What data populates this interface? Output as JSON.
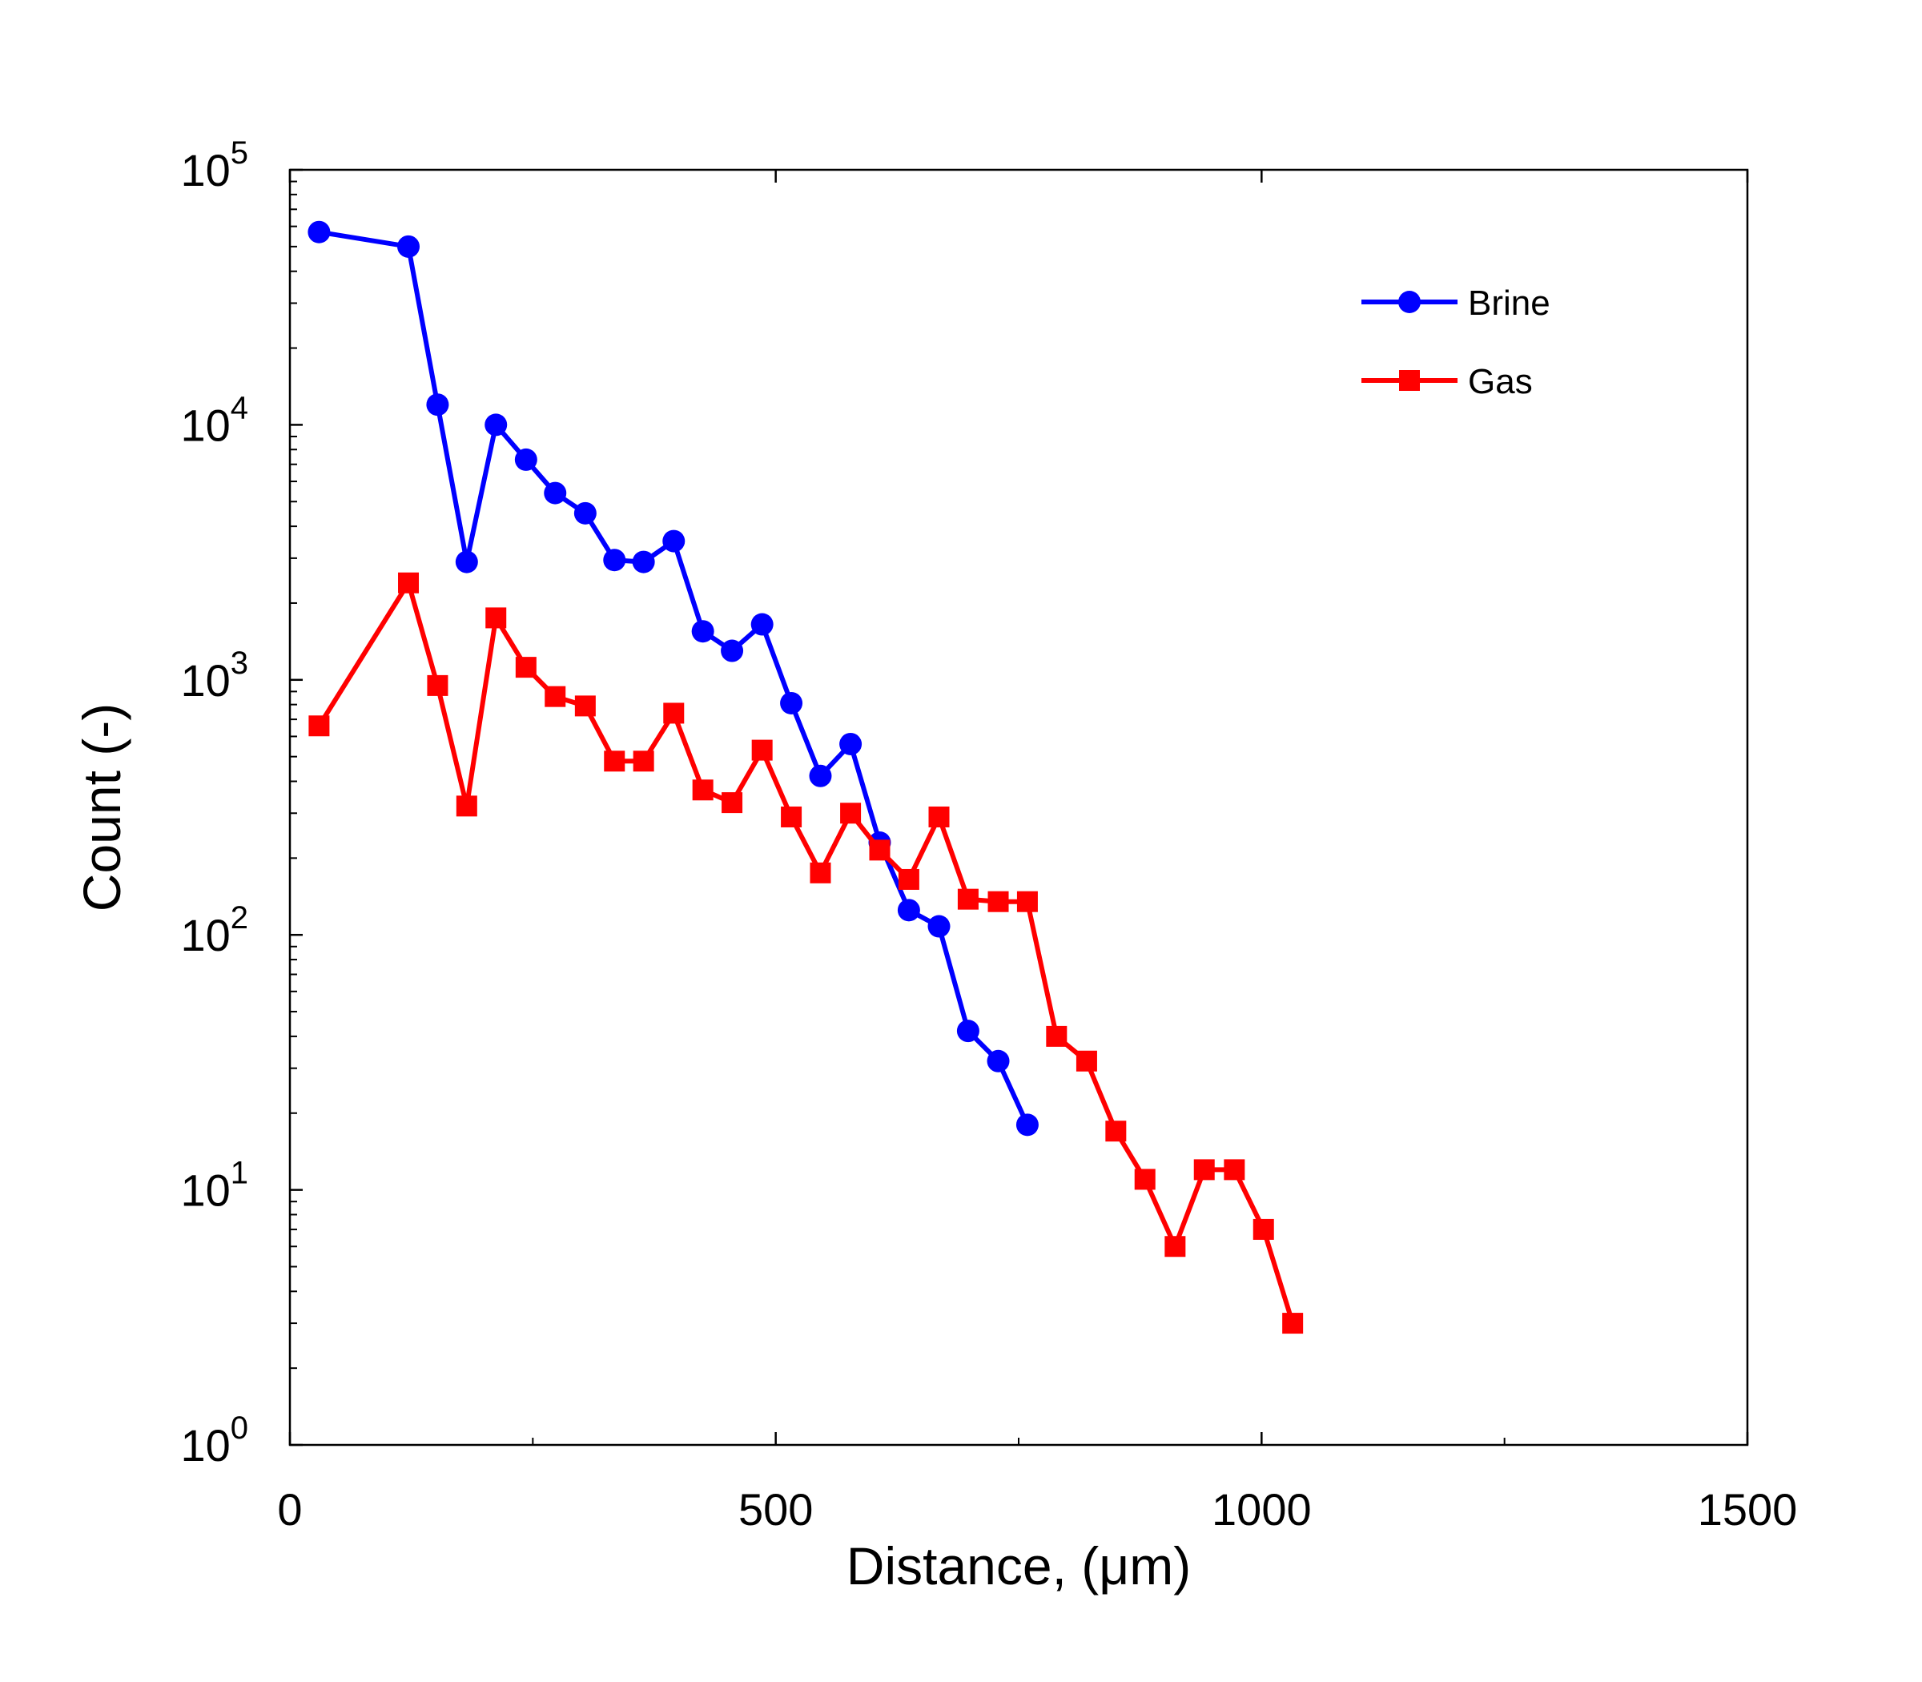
{
  "chart_data": {
    "type": "line",
    "title": "",
    "xlabel": "Distance, (μm)",
    "ylabel": "Count (-)",
    "xlim": [
      0,
      1500
    ],
    "ylim": [
      1,
      100000
    ],
    "yscale": "log",
    "grid": false,
    "legend_position": "top-right",
    "x_ticks": [
      "0",
      "500",
      "1000",
      "1500"
    ],
    "y_ticks": [
      {
        "base": "10",
        "exp": "0"
      },
      {
        "base": "10",
        "exp": "1"
      },
      {
        "base": "10",
        "exp": "2"
      },
      {
        "base": "10",
        "exp": "3"
      },
      {
        "base": "10",
        "exp": "4"
      },
      {
        "base": "10",
        "exp": "5"
      }
    ],
    "series": [
      {
        "name": "Brine",
        "color": "#0000ff",
        "marker": "circle",
        "x": [
          30,
          122,
          152,
          182,
          212,
          243,
          273,
          304,
          334,
          364,
          395,
          425,
          455,
          486,
          516,
          546,
          577,
          607,
          637,
          668,
          698,
          729,
          759
        ],
        "y": [
          57000,
          50000,
          12000,
          2900,
          10000,
          7300,
          5400,
          4500,
          2950,
          2900,
          3500,
          1550,
          1300,
          1650,
          810,
          420,
          560,
          230,
          125,
          108,
          42,
          32,
          18
        ]
      },
      {
        "name": "Gas",
        "color": "#ff0000",
        "marker": "square",
        "x": [
          30,
          122,
          152,
          182,
          212,
          243,
          273,
          304,
          334,
          364,
          395,
          425,
          455,
          486,
          516,
          546,
          577,
          607,
          637,
          668,
          698,
          729,
          759,
          789,
          820,
          850,
          880,
          911,
          941,
          972,
          1002,
          1032
        ],
        "y": [
          660,
          2400,
          950,
          320,
          1750,
          1120,
          860,
          790,
          480,
          480,
          740,
          370,
          330,
          530,
          290,
          175,
          300,
          215,
          165,
          290,
          138,
          135,
          135,
          40,
          32,
          17,
          11,
          6,
          12,
          12,
          7,
          3
        ]
      }
    ]
  }
}
